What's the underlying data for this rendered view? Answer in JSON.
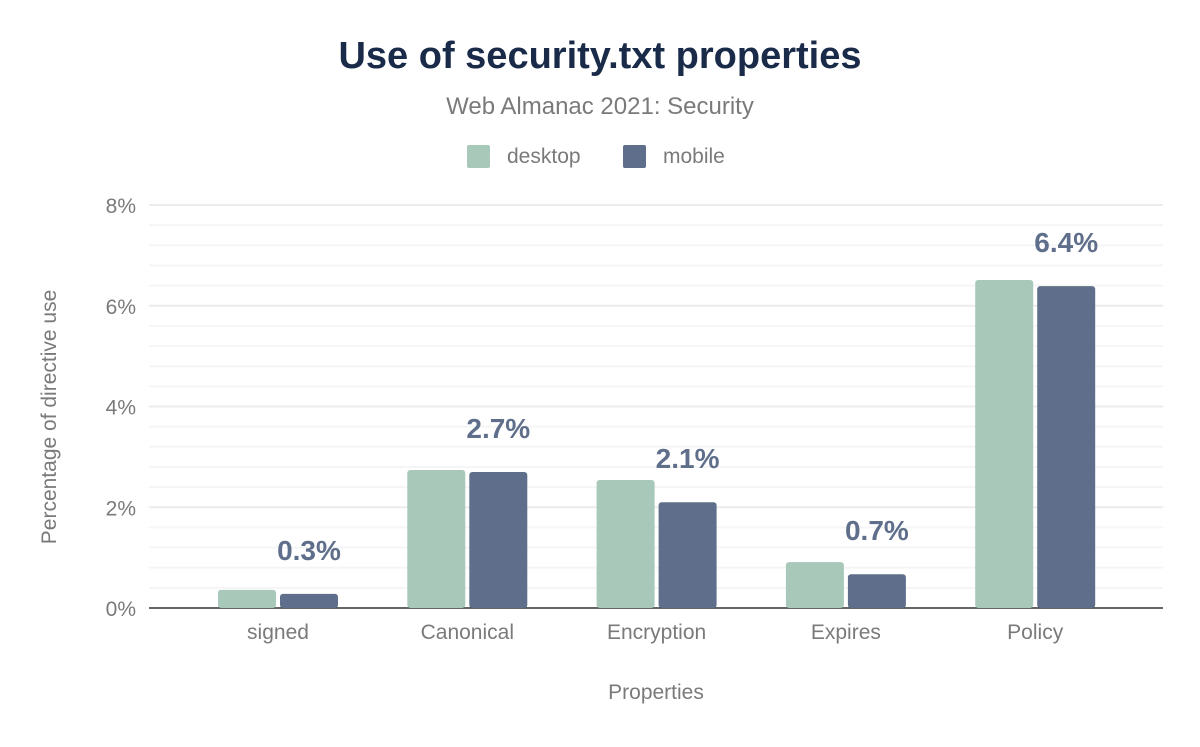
{
  "chart_data": {
    "type": "bar",
    "title": "Use of security.txt properties",
    "subtitle": "Web Almanac 2021: Security",
    "xlabel": "Properties",
    "ylabel": "Percentage of directive use",
    "categories": [
      "signed",
      "Canonical",
      "Encryption",
      "Expires",
      "Policy"
    ],
    "series": [
      {
        "name": "desktop",
        "color": "#a8c8b9",
        "values": [
          0.36,
          2.74,
          2.54,
          0.91,
          6.51
        ]
      },
      {
        "name": "mobile",
        "color": "#5f6f8b",
        "values": [
          0.28,
          2.7,
          2.1,
          0.67,
          6.39
        ],
        "data_labels": [
          "0.3%",
          "2.7%",
          "2.1%",
          "0.7%",
          "6.4%"
        ]
      }
    ],
    "ylim": [
      0,
      8
    ],
    "yticks": [
      0,
      2,
      4,
      6,
      8
    ],
    "ytick_labels": [
      "0%",
      "2%",
      "4%",
      "6%",
      "8%"
    ],
    "grid": true,
    "legend_position": "top-center",
    "colors": {
      "title": "#1a2b49",
      "text": "#7a7a7a",
      "data_label": "#5f6f8b"
    }
  }
}
